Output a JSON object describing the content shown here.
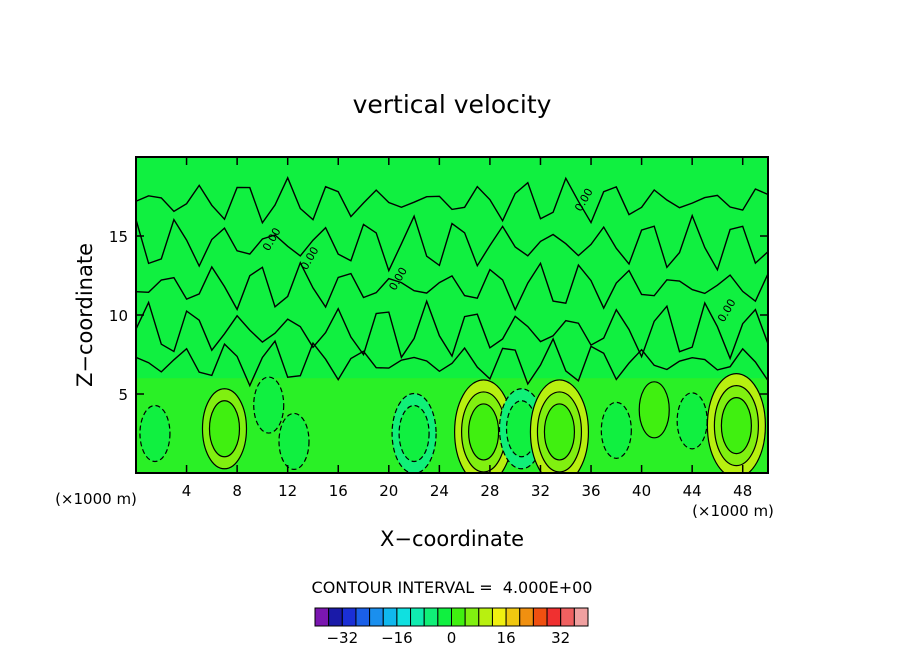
{
  "chart_data": {
    "type": "heatmap",
    "title": "vertical velocity",
    "xlabel": "X−coordinate",
    "ylabel": "Z−coordinate",
    "x_unit": "(×1000 m)",
    "y_unit": "(×1000 m)",
    "xlim": [
      0,
      50
    ],
    "ylim": [
      0,
      20
    ],
    "x_ticks": [
      4,
      8,
      12,
      16,
      20,
      24,
      28,
      32,
      36,
      40,
      44,
      48
    ],
    "y_ticks": [
      5,
      10,
      15
    ],
    "contour_interval_label": "CONTOUR INTERVAL =  4.000E+00",
    "contour_label": "0.00",
    "colorbar": {
      "levels": [
        -36,
        -32,
        -28,
        -24,
        -20,
        -16,
        -12,
        -8,
        -4,
        0,
        4,
        8,
        12,
        16,
        20,
        24,
        28,
        32,
        36
      ],
      "tick_labels": [
        -32,
        -16,
        0,
        16,
        32
      ],
      "colors": [
        "#7a16b0",
        "#1a1aa8",
        "#1a2fd6",
        "#1a5fe8",
        "#1a8fee",
        "#10b8ee",
        "#10e0e0",
        "#10ecb0",
        "#10f078",
        "#10f040",
        "#40f010",
        "#80f010",
        "#b8f010",
        "#f0f010",
        "#f0c810",
        "#f09010",
        "#f05010",
        "#f03030",
        "#f06060",
        "#f0a0a0"
      ]
    },
    "features": [
      {
        "kind": "updraft",
        "x": 7,
        "z": 2.8,
        "value": 8
      },
      {
        "kind": "downdraft",
        "x": 10.5,
        "z": 4.3,
        "value": -4
      },
      {
        "kind": "downdraft",
        "x": 12.5,
        "z": 2.0,
        "value": -4
      },
      {
        "kind": "downdraft",
        "x": 22,
        "z": 2.5,
        "value": -8
      },
      {
        "kind": "updraft",
        "x": 27.5,
        "z": 2.6,
        "value": 12
      },
      {
        "kind": "downdraft",
        "x": 30.5,
        "z": 2.8,
        "value": -8
      },
      {
        "kind": "updraft",
        "x": 33.5,
        "z": 2.6,
        "value": 12
      },
      {
        "kind": "downdraft",
        "x": 38,
        "z": 2.7,
        "value": -4
      },
      {
        "kind": "updraft",
        "x": 41,
        "z": 4.0,
        "value": 4
      },
      {
        "kind": "downdraft",
        "x": 44,
        "z": 3.3,
        "value": -4
      },
      {
        "kind": "updraft",
        "x": 47.5,
        "z": 3.0,
        "value": 12
      },
      {
        "kind": "downdraft",
        "x": 1.5,
        "z": 2.5,
        "value": -4
      }
    ]
  }
}
